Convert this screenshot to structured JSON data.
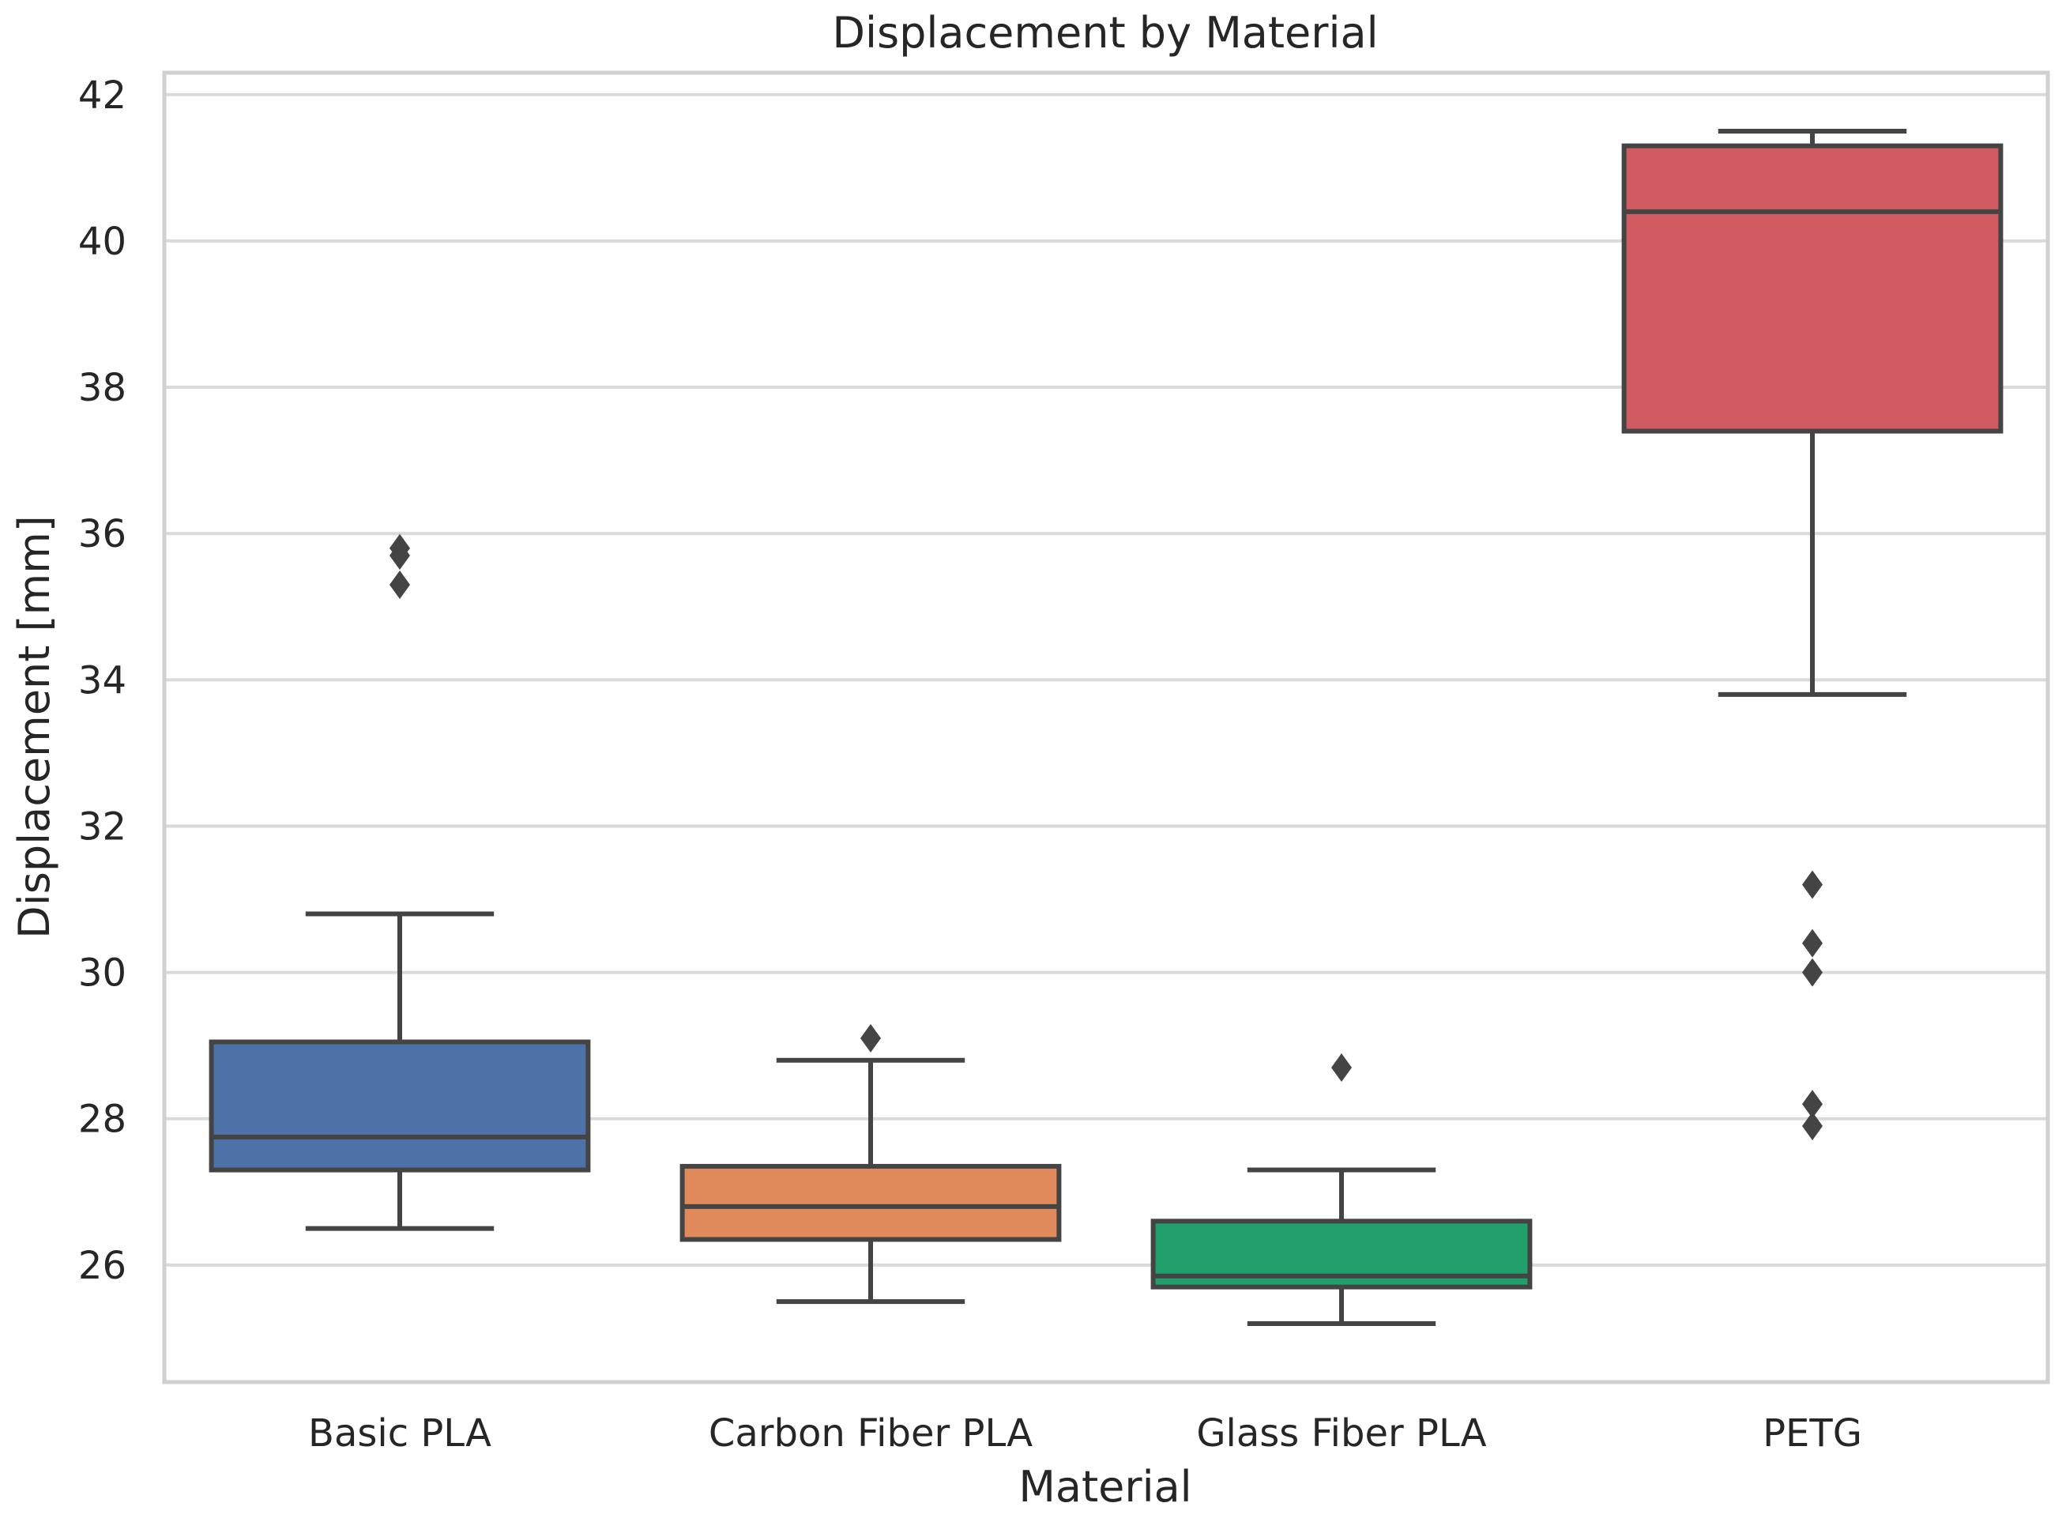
{
  "chart_data": {
    "type": "box",
    "title": "Displacement by Material",
    "xlabel": "Material",
    "ylabel": "Displacement [mm]",
    "ylim": [
      24.4,
      42.3
    ],
    "yticks": [
      26,
      28,
      30,
      32,
      34,
      36,
      38,
      40,
      42
    ],
    "grid": true,
    "categories": [
      "Basic PLA",
      "Carbon Fiber PLA",
      "Glass Fiber PLA",
      "PETG"
    ],
    "boxes": [
      {
        "name": "Basic PLA",
        "color": "#4c72a8",
        "whisker_low": 26.5,
        "q1": 27.3,
        "median": 27.75,
        "q3": 29.05,
        "whisker_high": 30.8,
        "outliers": [
          35.8,
          35.7,
          35.3
        ]
      },
      {
        "name": "Carbon Fiber PLA",
        "color": "#e0895a",
        "whisker_low": 25.5,
        "q1": 26.35,
        "median": 26.8,
        "q3": 27.35,
        "whisker_high": 28.8,
        "outliers": [
          29.1
        ]
      },
      {
        "name": "Glass Fiber PLA",
        "color": "#22a06c",
        "whisker_low": 25.2,
        "q1": 25.7,
        "median": 25.85,
        "q3": 26.6,
        "whisker_high": 27.3,
        "outliers": [
          28.7
        ]
      },
      {
        "name": "PETG",
        "color": "#cf5b60",
        "whisker_low": 33.8,
        "q1": 37.4,
        "median": 40.4,
        "q3": 41.3,
        "whisker_high": 41.5,
        "outliers": [
          31.2,
          30.4,
          30.0,
          28.2,
          27.9
        ]
      }
    ]
  }
}
